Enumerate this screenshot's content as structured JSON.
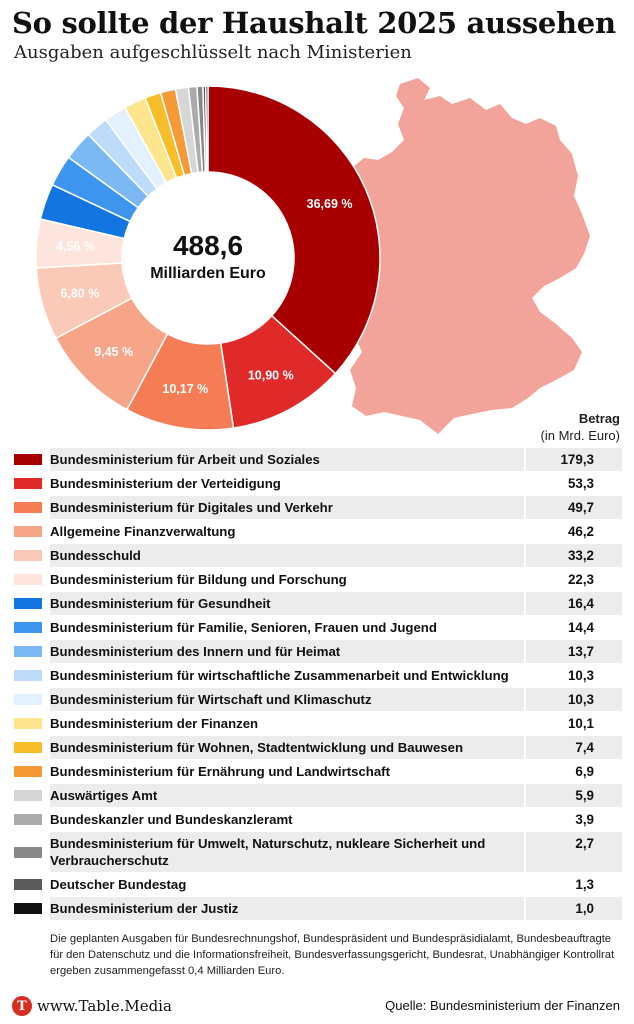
{
  "header": {
    "title": "So sollte der Haushalt 2025 aussehen",
    "subtitle": "Ausgaben aufgeschlüsselt nach Ministerien"
  },
  "donut": {
    "center_value": "488,6",
    "center_unit": "Milliarden Euro"
  },
  "column_header": {
    "line1": "Betrag",
    "line2": "(in Mrd. Euro)"
  },
  "chart_data": {
    "type": "pie",
    "total": 488.6,
    "unit": "Milliarden Euro",
    "slices": [
      {
        "name": "Bundesministerium für Arbeit und Soziales",
        "value": 179.3,
        "label": "179,3",
        "pct_label": "36,69 %",
        "color": "#a80000"
      },
      {
        "name": "Bundesministerium der Verteidigung",
        "value": 53.3,
        "label": "53,3",
        "pct_label": "10,90 %",
        "color": "#e02929"
      },
      {
        "name": "Bundesministerium für Digitales und Verkehr",
        "value": 49.7,
        "label": "49,7",
        "pct_label": "10,17 %",
        "color": "#f47d56"
      },
      {
        "name": "Allgemeine Finanzverwaltung",
        "value": 46.2,
        "label": "46,2",
        "pct_label": "9,45 %",
        "color": "#f6a588"
      },
      {
        "name": "Bundesschuld",
        "value": 33.2,
        "label": "33,2",
        "pct_label": "6,80 %",
        "color": "#fac9b7"
      },
      {
        "name": "Bundesministerium für Bildung und Forschung",
        "value": 22.3,
        "label": "22,3",
        "pct_label": "4,56 %",
        "color": "#fde4dc"
      },
      {
        "name": "Bundesministerium für Gesundheit",
        "value": 16.4,
        "label": "16,4",
        "pct_label": "",
        "color": "#1275e0"
      },
      {
        "name": "Bundesministerium für Familie, Senioren, Frauen und Jugend",
        "value": 14.4,
        "label": "14,4",
        "pct_label": "",
        "color": "#3d95ee"
      },
      {
        "name": "Bundesministerium des Innern und für Heimat",
        "value": 13.7,
        "label": "13,7",
        "pct_label": "",
        "color": "#7cb9f4"
      },
      {
        "name": "Bundesministerium für wirtschaftliche Zusammenarbeit und Entwicklung",
        "value": 10.3,
        "label": "10,3",
        "pct_label": "",
        "color": "#bcdcfa"
      },
      {
        "name": "Bundesministerium für Wirtschaft und Klimaschutz",
        "value": 10.3,
        "label": "10,3",
        "pct_label": "",
        "color": "#e3f0fd"
      },
      {
        "name": "Bundesministerium der Finanzen",
        "value": 10.1,
        "label": "10,1",
        "pct_label": "",
        "color": "#fde58d"
      },
      {
        "name": "Bundesministerium für Wohnen, Stadtentwicklung und Bauwesen",
        "value": 7.4,
        "label": "7,4",
        "pct_label": "",
        "color": "#f7be2a"
      },
      {
        "name": "Bundesministerium für Ernährung und Landwirtschaft",
        "value": 6.9,
        "label": "6,9",
        "pct_label": "",
        "color": "#f59a36"
      },
      {
        "name": "Auswärtiges Amt",
        "value": 5.9,
        "label": "5,9",
        "pct_label": "",
        "color": "#d6d6d6"
      },
      {
        "name": "Bundeskanzler und Bundeskanzleramt",
        "value": 3.9,
        "label": "3,9",
        "pct_label": "",
        "color": "#ababab"
      },
      {
        "name": "Bundesministerium für Umwelt, Naturschutz, nukleare Sicherheit und Verbraucherschutz",
        "value": 2.7,
        "label": "2,7",
        "pct_label": "",
        "color": "#888888"
      },
      {
        "name": "Deutscher Bundestag",
        "value": 1.3,
        "label": "1,3",
        "pct_label": "",
        "color": "#5a5a5a"
      },
      {
        "name": "Bundesministerium der Justiz",
        "value": 1.0,
        "label": "1,0",
        "pct_label": "",
        "color": "#111111"
      }
    ]
  },
  "colors": {
    "map_fill": "#f2a39a",
    "accent_red": "#d62c22"
  },
  "note": "Die geplanten Ausgaben für Bundesrechnungshof, Bundespräsident und Bundespräsidialamt, Bundesbeauftragte für den Datenschutz und die Informationsfreiheit, Bundesverfassungsgericht, Bundesrat, Unabhängiger Kontrollrat ergeben zusammengefasst 0,4 Milliarden Euro.",
  "footer": {
    "logo_letter": "T",
    "site": "www.Table.Media",
    "source": "Quelle: Bundesministerium der Finanzen"
  }
}
